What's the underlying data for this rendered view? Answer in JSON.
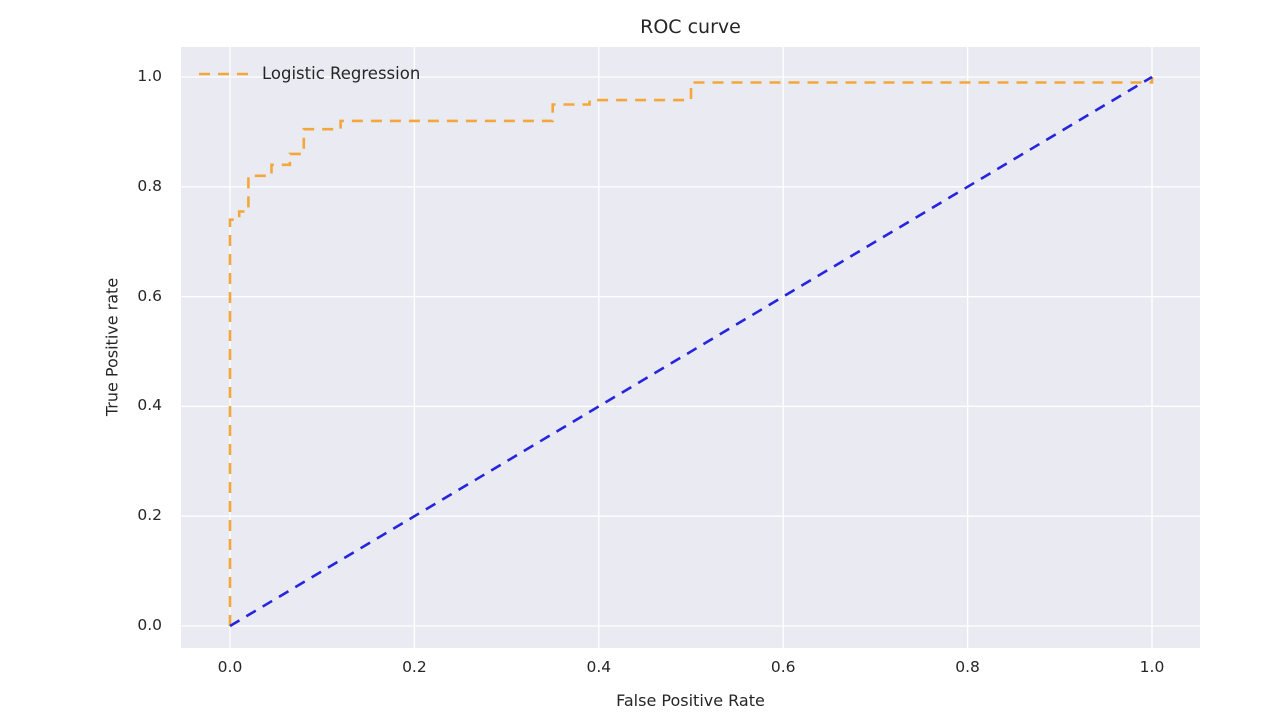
{
  "chart_data": {
    "type": "line",
    "title": "ROC curve",
    "xlabel": "False Positive Rate",
    "ylabel": "True Positive rate",
    "xlim": [
      -0.053,
      1.052
    ],
    "ylim": [
      -0.04,
      1.055
    ],
    "xticks": [
      0.0,
      0.2,
      0.4,
      0.6,
      0.8,
      1.0
    ],
    "yticks": [
      0.0,
      0.2,
      0.4,
      0.6,
      0.8,
      1.0
    ],
    "xtick_labels": [
      "0.0",
      "0.2",
      "0.4",
      "0.6",
      "0.8",
      "1.0"
    ],
    "ytick_labels": [
      "0.0",
      "0.2",
      "0.4",
      "0.6",
      "0.8",
      "1.0"
    ],
    "grid": true,
    "legend_position": "upper left",
    "colors": {
      "figure_bg": "#ffffff",
      "plot_bg": "#eaeaf2",
      "grid": "#ffffff",
      "text": "#262626"
    },
    "series": [
      {
        "id": "logistic-regression-roc",
        "name": "Logistic Regression",
        "color": "#f3a73a",
        "style": "dashed",
        "in_legend": true,
        "points": [
          [
            0.0,
            0.0
          ],
          [
            0.0,
            0.74
          ],
          [
            0.01,
            0.74
          ],
          [
            0.01,
            0.755
          ],
          [
            0.02,
            0.755
          ],
          [
            0.02,
            0.82
          ],
          [
            0.045,
            0.82
          ],
          [
            0.045,
            0.84
          ],
          [
            0.065,
            0.84
          ],
          [
            0.065,
            0.86
          ],
          [
            0.08,
            0.86
          ],
          [
            0.08,
            0.905
          ],
          [
            0.12,
            0.905
          ],
          [
            0.12,
            0.92
          ],
          [
            0.35,
            0.92
          ],
          [
            0.35,
            0.95
          ],
          [
            0.39,
            0.95
          ],
          [
            0.39,
            0.958
          ],
          [
            0.5,
            0.958
          ],
          [
            0.5,
            0.99
          ],
          [
            1.0,
            0.99
          ],
          [
            1.0,
            1.0
          ]
        ]
      },
      {
        "id": "chance-diagonal",
        "name": "",
        "color": "#2525dd",
        "style": "dashed",
        "in_legend": false,
        "points": [
          [
            0.0,
            0.0
          ],
          [
            1.0,
            1.0
          ]
        ]
      }
    ]
  }
}
